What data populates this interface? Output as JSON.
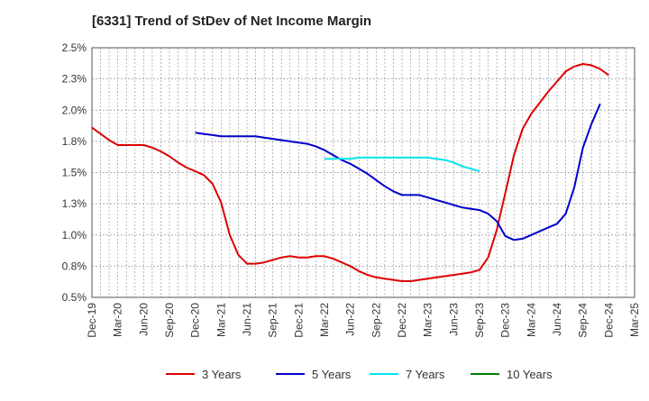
{
  "chart_data": {
    "type": "line",
    "title": "[6331]  Trend of StDev of Net Income Margin",
    "xlabel": "",
    "ylabel": "",
    "y_ticks": [
      "0.5%",
      "0.8%",
      "1.0%",
      "1.3%",
      "1.5%",
      "1.8%",
      "2.0%",
      "2.3%",
      "2.5%"
    ],
    "y_tick_values": [
      0.5,
      0.75,
      1.0,
      1.25,
      1.5,
      1.75,
      2.0,
      2.25,
      2.5
    ],
    "ylim": [
      0.5,
      2.5
    ],
    "x_ticks": [
      "Dec-19",
      "Mar-20",
      "Jun-20",
      "Sep-20",
      "Dec-20",
      "Mar-21",
      "Jun-21",
      "Sep-21",
      "Dec-21",
      "Mar-22",
      "Jun-22",
      "Sep-22",
      "Dec-22",
      "Mar-23",
      "Jun-23",
      "Sep-23",
      "Dec-23",
      "Mar-24",
      "Jun-24",
      "Sep-24",
      "Dec-24",
      "Mar-25"
    ],
    "grid": true,
    "legend_position": "bottom",
    "series": [
      {
        "name": "3 Years",
        "color": "#dd0000",
        "points": [
          [
            "Dec-19",
            1.86
          ],
          [
            "Jan-20",
            1.81
          ],
          [
            "Feb-20",
            1.76
          ],
          [
            "Mar-20",
            1.72
          ],
          [
            "Apr-20",
            1.72
          ],
          [
            "May-20",
            1.72
          ],
          [
            "Jun-20",
            1.72
          ],
          [
            "Jul-20",
            1.7
          ],
          [
            "Aug-20",
            1.67
          ],
          [
            "Sep-20",
            1.63
          ],
          [
            "Oct-20",
            1.58
          ],
          [
            "Nov-20",
            1.54
          ],
          [
            "Dec-20",
            1.51
          ],
          [
            "Jan-21",
            1.48
          ],
          [
            "Feb-21",
            1.41
          ],
          [
            "Mar-21",
            1.26
          ],
          [
            "Apr-21",
            1.0
          ],
          [
            "May-21",
            0.84
          ],
          [
            "Jun-21",
            0.77
          ],
          [
            "Jul-21",
            0.77
          ],
          [
            "Aug-21",
            0.78
          ],
          [
            "Sep-21",
            0.8
          ],
          [
            "Oct-21",
            0.82
          ],
          [
            "Nov-21",
            0.83
          ],
          [
            "Dec-21",
            0.82
          ],
          [
            "Jan-22",
            0.82
          ],
          [
            "Feb-22",
            0.83
          ],
          [
            "Mar-22",
            0.83
          ],
          [
            "Apr-22",
            0.81
          ],
          [
            "May-22",
            0.78
          ],
          [
            "Jun-22",
            0.75
          ],
          [
            "Jul-22",
            0.71
          ],
          [
            "Aug-22",
            0.68
          ],
          [
            "Sep-22",
            0.66
          ],
          [
            "Oct-22",
            0.65
          ],
          [
            "Nov-22",
            0.64
          ],
          [
            "Dec-22",
            0.63
          ],
          [
            "Jan-23",
            0.63
          ],
          [
            "Feb-23",
            0.64
          ],
          [
            "Mar-23",
            0.65
          ],
          [
            "Apr-23",
            0.66
          ],
          [
            "May-23",
            0.67
          ],
          [
            "Jun-23",
            0.68
          ],
          [
            "Jul-23",
            0.69
          ],
          [
            "Aug-23",
            0.7
          ],
          [
            "Sep-23",
            0.72
          ],
          [
            "Oct-23",
            0.82
          ],
          [
            "Nov-23",
            1.04
          ],
          [
            "Dec-23",
            1.34
          ],
          [
            "Jan-24",
            1.64
          ],
          [
            "Feb-24",
            1.85
          ],
          [
            "Mar-24",
            1.97
          ],
          [
            "Apr-24",
            2.06
          ],
          [
            "May-24",
            2.15
          ],
          [
            "Jun-24",
            2.23
          ],
          [
            "Jul-24",
            2.31
          ],
          [
            "Aug-24",
            2.35
          ],
          [
            "Sep-24",
            2.37
          ],
          [
            "Oct-24",
            2.36
          ],
          [
            "Nov-24",
            2.33
          ],
          [
            "Dec-24",
            2.28
          ]
        ]
      },
      {
        "name": "5 Years",
        "color": "#0000cc",
        "points": [
          [
            "Dec-20",
            1.82
          ],
          [
            "Jan-21",
            1.81
          ],
          [
            "Feb-21",
            1.8
          ],
          [
            "Mar-21",
            1.79
          ],
          [
            "Apr-21",
            1.79
          ],
          [
            "May-21",
            1.79
          ],
          [
            "Jun-21",
            1.79
          ],
          [
            "Jul-21",
            1.79
          ],
          [
            "Aug-21",
            1.78
          ],
          [
            "Sep-21",
            1.77
          ],
          [
            "Oct-21",
            1.76
          ],
          [
            "Nov-21",
            1.75
          ],
          [
            "Dec-21",
            1.74
          ],
          [
            "Jan-22",
            1.73
          ],
          [
            "Feb-22",
            1.71
          ],
          [
            "Mar-22",
            1.68
          ],
          [
            "Apr-22",
            1.64
          ],
          [
            "May-22",
            1.6
          ],
          [
            "Jun-22",
            1.57
          ],
          [
            "Jul-22",
            1.53
          ],
          [
            "Aug-22",
            1.49
          ],
          [
            "Sep-22",
            1.44
          ],
          [
            "Oct-22",
            1.39
          ],
          [
            "Nov-22",
            1.35
          ],
          [
            "Dec-22",
            1.32
          ],
          [
            "Jan-23",
            1.32
          ],
          [
            "Feb-23",
            1.32
          ],
          [
            "Mar-23",
            1.3
          ],
          [
            "Apr-23",
            1.28
          ],
          [
            "May-23",
            1.26
          ],
          [
            "Jun-23",
            1.24
          ],
          [
            "Jul-23",
            1.22
          ],
          [
            "Aug-23",
            1.21
          ],
          [
            "Sep-23",
            1.2
          ],
          [
            "Oct-23",
            1.17
          ],
          [
            "Nov-23",
            1.11
          ],
          [
            "Dec-23",
            0.99
          ],
          [
            "Jan-24",
            0.96
          ],
          [
            "Feb-24",
            0.97
          ],
          [
            "Mar-24",
            1.0
          ],
          [
            "Apr-24",
            1.03
          ],
          [
            "May-24",
            1.06
          ],
          [
            "Jun-24",
            1.09
          ],
          [
            "Jul-24",
            1.17
          ],
          [
            "Aug-24",
            1.38
          ],
          [
            "Sep-24",
            1.7
          ],
          [
            "Oct-24",
            1.89
          ],
          [
            "Nov-24",
            2.05
          ]
        ]
      },
      {
        "name": "7 Years",
        "color": "#00e5ee",
        "points": [
          [
            "Mar-22",
            1.61
          ],
          [
            "Apr-22",
            1.61
          ],
          [
            "May-22",
            1.61
          ],
          [
            "Jun-22",
            1.61
          ],
          [
            "Jul-22",
            1.62
          ],
          [
            "Aug-22",
            1.62
          ],
          [
            "Sep-22",
            1.62
          ],
          [
            "Oct-22",
            1.62
          ],
          [
            "Nov-22",
            1.62
          ],
          [
            "Dec-22",
            1.62
          ],
          [
            "Jan-23",
            1.62
          ],
          [
            "Feb-23",
            1.62
          ],
          [
            "Mar-23",
            1.62
          ],
          [
            "Apr-23",
            1.61
          ],
          [
            "May-23",
            1.6
          ],
          [
            "Jun-23",
            1.58
          ],
          [
            "Jul-23",
            1.55
          ],
          [
            "Aug-23",
            1.53
          ],
          [
            "Sep-23",
            1.51
          ]
        ]
      },
      {
        "name": "10 Years",
        "color": "#008000",
        "points": []
      }
    ]
  }
}
